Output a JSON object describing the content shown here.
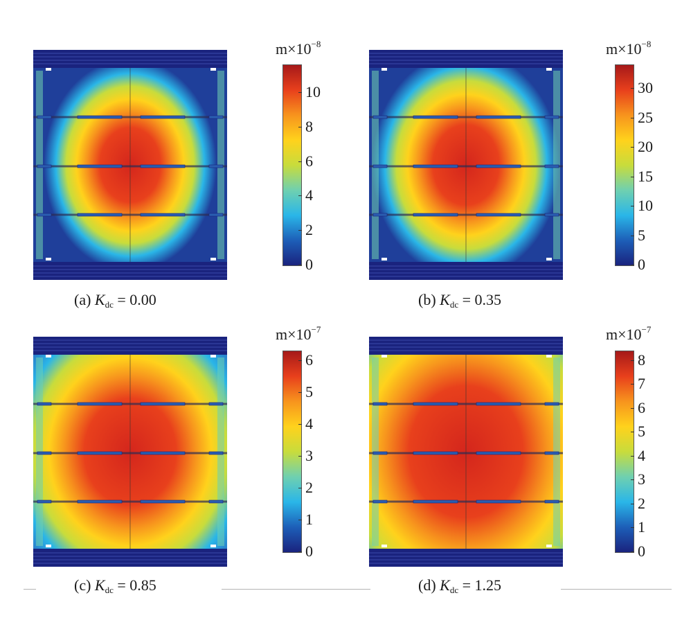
{
  "panels": [
    {
      "caption": {
        "prefix": "(a)",
        "symbol": "K",
        "subscript": "dc",
        "value": "= 0.00"
      },
      "unit": {
        "base": "m×10",
        "exponent": "−8"
      },
      "ticks": [
        "0",
        "2",
        "4",
        "6",
        "8",
        "10"
      ],
      "tick_values": [
        0,
        2,
        4,
        6,
        8,
        10
      ],
      "scale_max": 11.6
    },
    {
      "caption": {
        "prefix": "(b)",
        "symbol": "K",
        "subscript": "dc",
        "value": "= 0.35"
      },
      "unit": {
        "base": "m×10",
        "exponent": "−8"
      },
      "ticks": [
        "0",
        "5",
        "10",
        "15",
        "20",
        "25",
        "30"
      ],
      "tick_values": [
        0,
        5,
        10,
        15,
        20,
        25,
        30
      ],
      "scale_max": 34
    },
    {
      "caption": {
        "prefix": "(c)",
        "symbol": "K",
        "subscript": "dc",
        "value": "= 0.85"
      },
      "unit": {
        "base": "m×10",
        "exponent": "−7"
      },
      "ticks": [
        "0",
        "1",
        "2",
        "3",
        "4",
        "5",
        "6"
      ],
      "tick_values": [
        0,
        1,
        2,
        3,
        4,
        5,
        6
      ],
      "scale_max": 6.3
    },
    {
      "caption": {
        "prefix": "(d)",
        "symbol": "K",
        "subscript": "dc",
        "value": "= 1.25"
      },
      "unit": {
        "base": "m×10",
        "exponent": "−7"
      },
      "ticks": [
        "0",
        "1",
        "2",
        "3",
        "4",
        "5",
        "6",
        "7",
        "8"
      ],
      "tick_values": [
        0,
        1,
        2,
        3,
        4,
        5,
        6,
        7,
        8
      ],
      "scale_max": 8.4
    }
  ],
  "colors": {
    "colormap": [
      "#1a237e",
      "#1d5fb8",
      "#2ab6e8",
      "#6fd0b0",
      "#c8dc3c",
      "#ffd21c",
      "#f7941d",
      "#e8401c",
      "#a61919"
    ]
  }
}
